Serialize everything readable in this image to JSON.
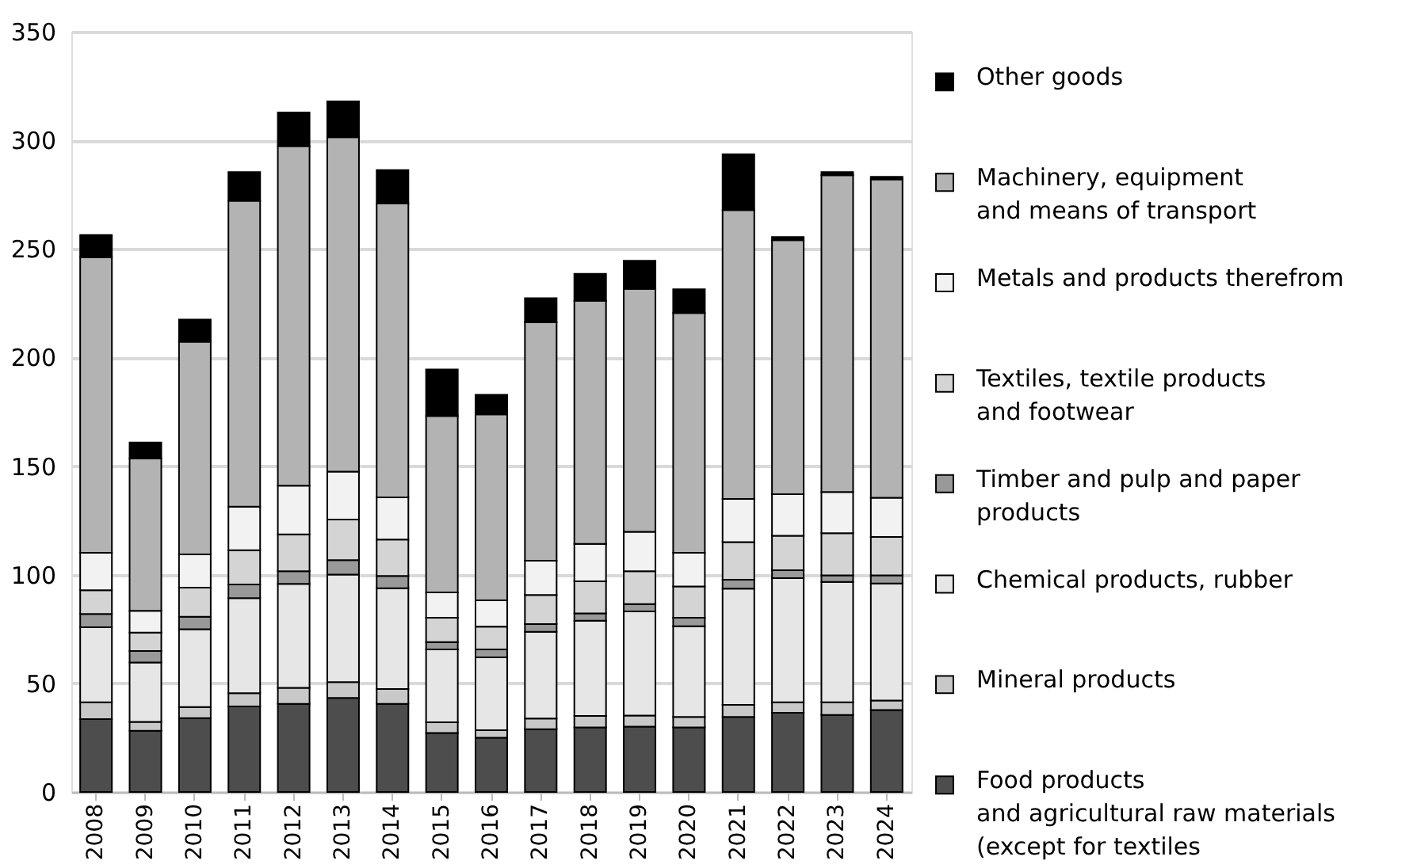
{
  "chart_data": {
    "type": "bar",
    "stacked": true,
    "categories": [
      "2008",
      "2009",
      "2010",
      "2011",
      "2012",
      "2013",
      "2014",
      "2015",
      "2016",
      "2017",
      "2018",
      "2019",
      "2020",
      "2021",
      "2022",
      "2023",
      "2024"
    ],
    "ylim": [
      0,
      350
    ],
    "yticks": [
      0,
      50,
      100,
      150,
      200,
      250,
      300,
      350
    ],
    "grid": "y",
    "legend": "right",
    "series": [
      {
        "name": "Food products\nand agricultural raw materials\n(except for textiles",
        "color": "#4d4d4d",
        "values": [
          33.5,
          28.2,
          34,
          39.4,
          40.6,
          43.3,
          40.6,
          27.2,
          25,
          28.9,
          29.7,
          30.1,
          29.7,
          34.5,
          36.5,
          35.5,
          37.7
        ]
      },
      {
        "name": "Mineral products",
        "color": "#c8c8c8",
        "values": [
          7.8,
          4.1,
          5.1,
          6.1,
          7.3,
          7.3,
          6.8,
          4.9,
          3.4,
          4.9,
          5.3,
          5.1,
          4.8,
          5.6,
          4.8,
          5.8,
          4.4
        ]
      },
      {
        "name": "Chemical products, rubber",
        "color": "#e6e6e6",
        "values": [
          34.5,
          27.3,
          35.8,
          43.7,
          47.9,
          49.5,
          46.4,
          33.5,
          33.6,
          39.9,
          43.8,
          47.9,
          41.8,
          53.5,
          57.1,
          55.4,
          53.9
        ]
      },
      {
        "name": "Timber and pulp and paper\nproducts",
        "color": "#999999",
        "values": [
          6.1,
          5.3,
          5.8,
          6.3,
          5.8,
          6.6,
          5.6,
          3.4,
          3.6,
          3.6,
          3.4,
          3.4,
          3.9,
          4.1,
          3.7,
          3,
          3.7
        ]
      },
      {
        "name": "Textiles, textile products\nand footwear",
        "color": "#d4d4d4",
        "values": [
          11,
          8.5,
          13.4,
          15.8,
          17,
          18.7,
          16.8,
          11.2,
          10.5,
          13.4,
          14.8,
          15.1,
          14.4,
          17.3,
          15.8,
          19.4,
          17.7
        ]
      },
      {
        "name": "Metals and products therefrom",
        "color": "#f2f2f2",
        "values": [
          17.2,
          10,
          15.3,
          20,
          22.4,
          22.1,
          19.4,
          11.7,
          12.1,
          15.8,
          17.2,
          18.2,
          15.5,
          19.9,
          19.2,
          19,
          18
        ]
      },
      {
        "name": "Machinery, equipment\nand means of transport",
        "color": "#b3b3b3",
        "values": [
          136.1,
          70.2,
          97.9,
          140.9,
          156.3,
          153.9,
          135.4,
          81.2,
          85.6,
          109.8,
          111.9,
          111.8,
          110.4,
          133,
          116.9,
          145.8,
          146.6
        ]
      },
      {
        "name": "Other goods",
        "color": "#000000",
        "values": [
          10.2,
          7.3,
          10.2,
          13.2,
          15.5,
          16.5,
          15.3,
          21.4,
          9,
          11,
          12.4,
          12.9,
          10.9,
          25.7,
          1.5,
          1.5,
          1.2
        ]
      }
    ]
  }
}
